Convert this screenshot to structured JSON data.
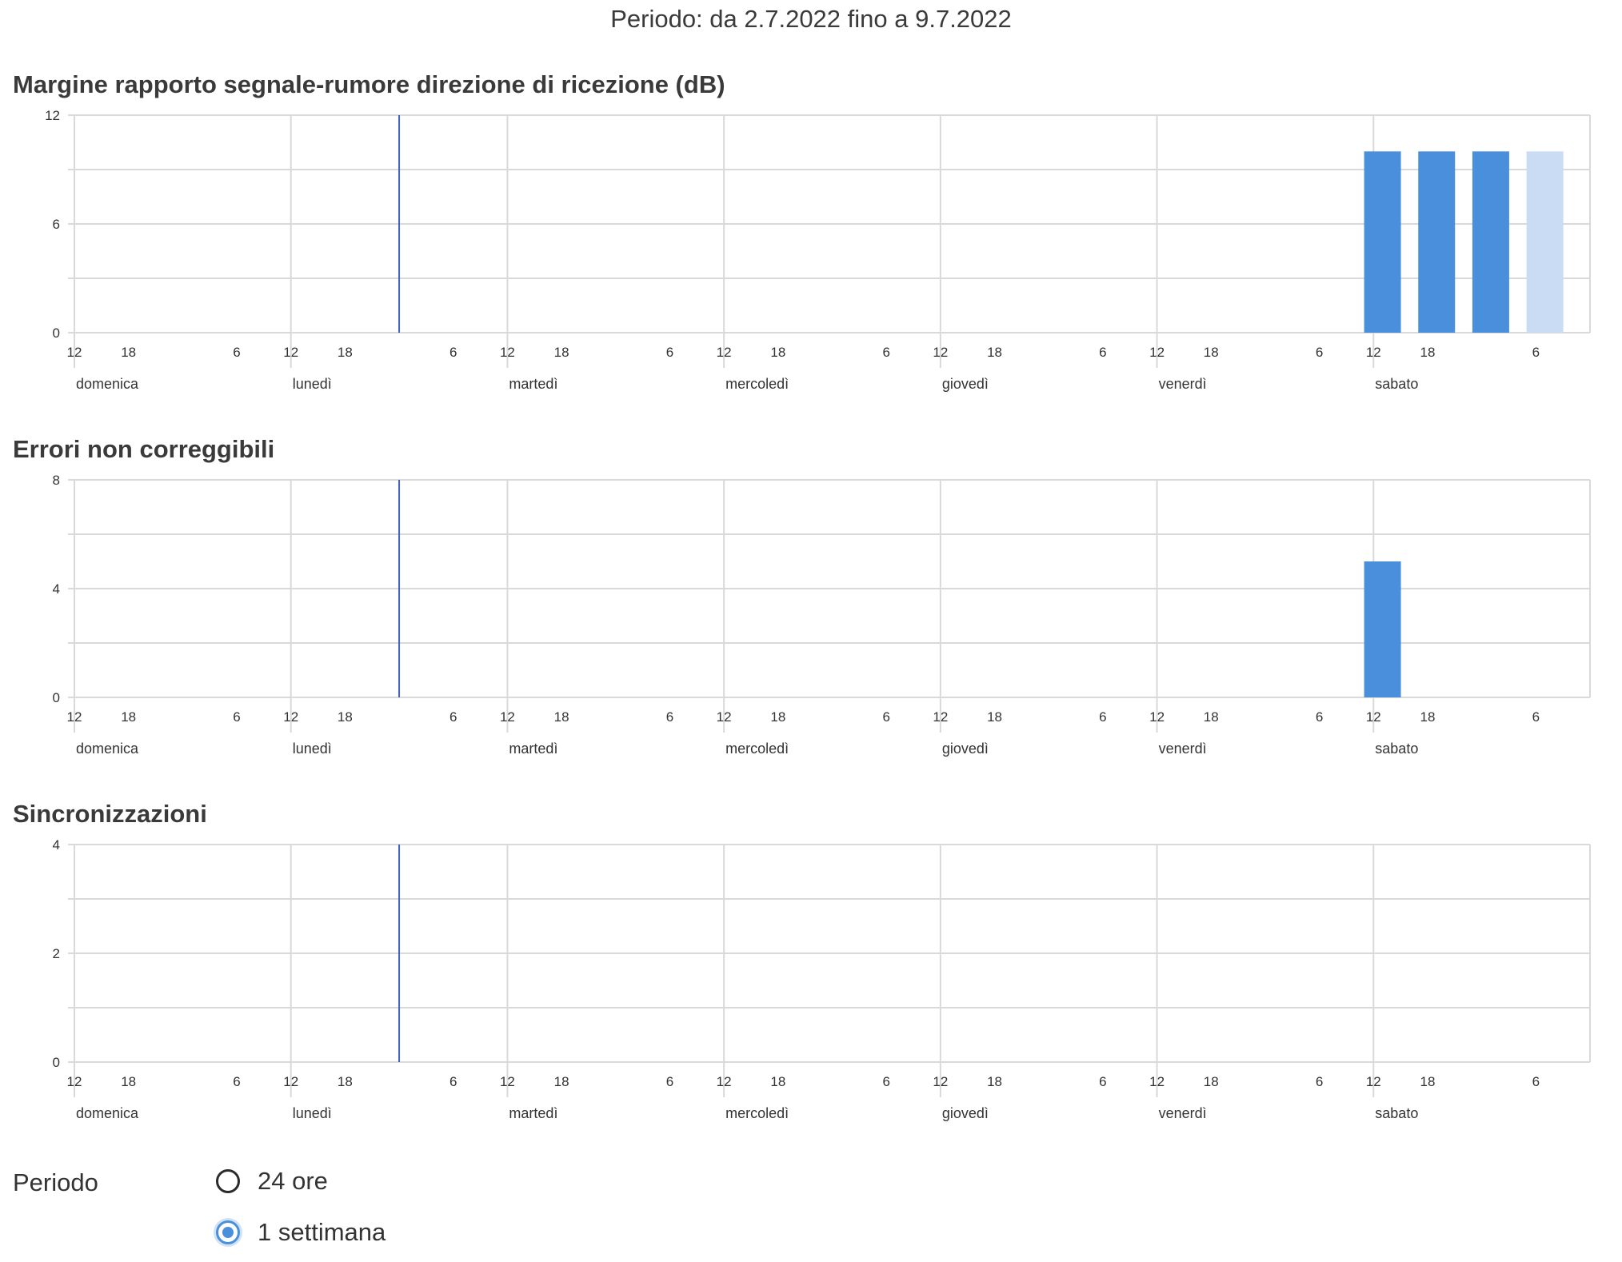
{
  "header": {
    "period_text": "Periodo: da 2.7.2022 fino a 9.7.2022"
  },
  "colors": {
    "bar": "#4a8fdc",
    "bar_faded": "#c9dcf3",
    "marker": "#3f66b8",
    "grid": "#d9d9d9",
    "text": "#333333"
  },
  "charts": [
    {
      "title": "Margine rapporto segnale-rumore direzione di ricezione (dB)",
      "chart_data": {
        "type": "bar",
        "x_unit": "hours since Sat 2.7.2022 12:00",
        "ylim": [
          0,
          12
        ],
        "yticks": [
          "0",
          "6",
          "12"
        ],
        "ygrid": [
          0,
          3,
          6,
          9,
          12
        ],
        "series": [
          {
            "values": [
              {
                "x": 145,
                "y": 10
              },
              {
                "x": 151,
                "y": 10
              },
              {
                "x": 157,
                "y": 10
              },
              {
                "x": 163,
                "y": 10,
                "faded": true
              }
            ]
          }
        ]
      }
    },
    {
      "title": "Errori non correggibili",
      "chart_data": {
        "type": "bar",
        "x_unit": "hours since Sat 2.7.2022 12:00",
        "ylim": [
          0,
          8
        ],
        "yticks": [
          "0",
          "4",
          "8"
        ],
        "ygrid": [
          0,
          2,
          4,
          6,
          8
        ],
        "series": [
          {
            "values": [
              {
                "x": 145,
                "y": 5
              }
            ]
          }
        ]
      }
    },
    {
      "title": "Sincronizzazioni",
      "chart_data": {
        "type": "bar",
        "x_unit": "hours since Sat 2.7.2022 12:00",
        "ylim": [
          0,
          4
        ],
        "yticks": [
          "0",
          "2",
          "4"
        ],
        "ygrid": [
          0,
          1,
          2,
          3,
          4
        ],
        "series": [
          {
            "values": []
          }
        ]
      }
    }
  ],
  "x_axis": {
    "hour_ticks": [
      {
        "t": 0,
        "label": "12"
      },
      {
        "t": 6,
        "label": "18"
      },
      {
        "t": 18,
        "label": "6"
      },
      {
        "t": 24,
        "label": "12"
      },
      {
        "t": 30,
        "label": "18"
      },
      {
        "t": 42,
        "label": "6"
      },
      {
        "t": 48,
        "label": "12"
      },
      {
        "t": 54,
        "label": "18"
      },
      {
        "t": 66,
        "label": "6"
      },
      {
        "t": 72,
        "label": "12"
      },
      {
        "t": 78,
        "label": "18"
      },
      {
        "t": 90,
        "label": "6"
      },
      {
        "t": 96,
        "label": "12"
      },
      {
        "t": 102,
        "label": "18"
      },
      {
        "t": 114,
        "label": "6"
      },
      {
        "t": 120,
        "label": "12"
      },
      {
        "t": 126,
        "label": "18"
      },
      {
        "t": 138,
        "label": "6"
      },
      {
        "t": 144,
        "label": "12"
      },
      {
        "t": 150,
        "label": "18"
      },
      {
        "t": 162,
        "label": "6"
      }
    ],
    "days": [
      {
        "t": 12,
        "label": "domenica"
      },
      {
        "t": 36,
        "label": "lunedì"
      },
      {
        "t": 60,
        "label": "martedì"
      },
      {
        "t": 84,
        "label": "mercoledì"
      },
      {
        "t": 108,
        "label": "giovedì"
      },
      {
        "t": 132,
        "label": "venerdì"
      },
      {
        "t": 156,
        "label": "sabato"
      }
    ],
    "marker_t": 36,
    "range": [
      0,
      168
    ]
  },
  "period_control": {
    "label": "Periodo",
    "options": [
      {
        "label": "24 ore",
        "selected": false
      },
      {
        "label": "1 settimana",
        "selected": true
      }
    ]
  }
}
